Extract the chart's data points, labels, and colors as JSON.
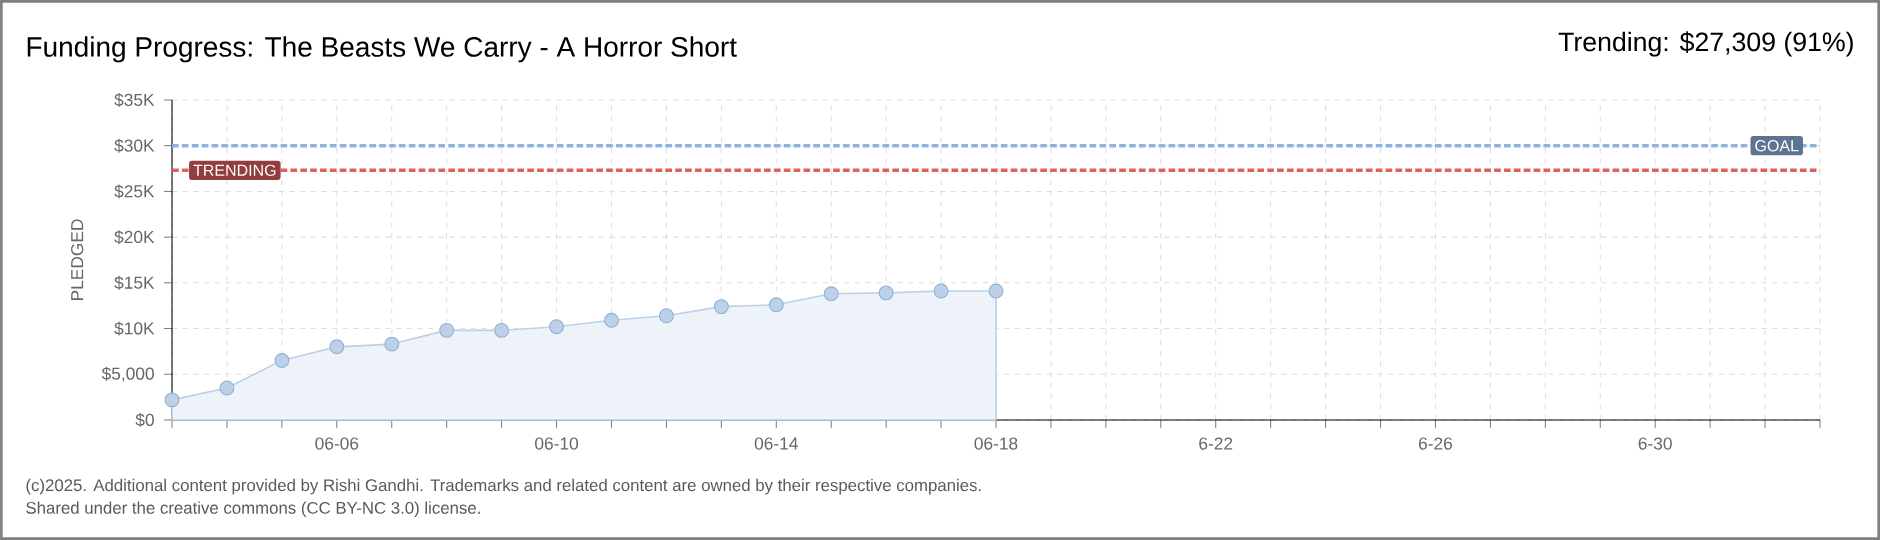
{
  "chart_data": {
    "type": "area",
    "title": "Funding Progress: The Beasts We Carry - A Horror Short",
    "subtitle": "Trending: $27,309 (91%)",
    "ylabel": "PLEDGED",
    "x": [
      "2025-06-03",
      "2025-06-04",
      "2025-06-05",
      "2025-06-06",
      "2025-06-07",
      "2025-06-08",
      "2025-06-09",
      "2025-06-10",
      "2025-06-11",
      "2025-06-12",
      "2025-06-13",
      "2025-06-14",
      "2025-06-15",
      "2025-06-16",
      "2025-06-17",
      "2025-06-18"
    ],
    "series": [
      {
        "color": "#8fb0d8",
        "values": [
          2200,
          3500,
          6500,
          8000,
          8300,
          9800,
          9800,
          10200,
          10900,
          11400,
          12400,
          12600,
          13800,
          13900,
          14100,
          14100
        ]
      }
    ],
    "xlim": [
      "2025-06-03",
      "2025-07-03"
    ],
    "xticks": [
      {
        "value": "2025-06-03",
        "label": null
      },
      {
        "value": "2025-06-04",
        "label": null
      },
      {
        "value": "2025-06-05",
        "label": null
      },
      {
        "value": "2025-06-06",
        "label": "06-06"
      },
      {
        "value": "2025-06-07",
        "label": null
      },
      {
        "value": "2025-06-08",
        "label": null
      },
      {
        "value": "2025-06-09",
        "label": null
      },
      {
        "value": "2025-06-10",
        "label": "06-10"
      },
      {
        "value": "2025-06-11",
        "label": null
      },
      {
        "value": "2025-06-12",
        "label": null
      },
      {
        "value": "2025-06-13",
        "label": null
      },
      {
        "value": "2025-06-14",
        "label": "06-14"
      },
      {
        "value": "2025-06-15",
        "label": null
      },
      {
        "value": "2025-06-16",
        "label": null
      },
      {
        "value": "2025-06-17",
        "label": null
      },
      {
        "value": "2025-06-18",
        "label": "06-18"
      },
      {
        "value": "2025-06-19",
        "label": null
      },
      {
        "value": "2025-06-20",
        "label": null
      },
      {
        "value": "2025-06-21",
        "label": null
      },
      {
        "value": "2025-06-22",
        "label": "6-22"
      },
      {
        "value": "2025-06-23",
        "label": null
      },
      {
        "value": "2025-06-24",
        "label": null
      },
      {
        "value": "2025-06-25",
        "label": null
      },
      {
        "value": "2025-06-26",
        "label": "6-26"
      },
      {
        "value": "2025-06-27",
        "label": null
      },
      {
        "value": "2025-06-28",
        "label": null
      },
      {
        "value": "2025-06-29",
        "label": null
      },
      {
        "value": "2025-06-30",
        "label": "6-30"
      },
      {
        "value": "2025-07-01",
        "label": null
      },
      {
        "value": "2025-07-02",
        "label": null
      },
      {
        "value": "2025-07-03",
        "label": null
      }
    ],
    "ylim": [
      0,
      35000
    ],
    "yticks": [
      {
        "value": 0,
        "label": "$0"
      },
      {
        "value": 5000,
        "label": "$5,000"
      },
      {
        "value": 10000,
        "label": "$10K"
      },
      {
        "value": 15000,
        "label": "$15K"
      },
      {
        "value": 20000,
        "label": "$20K"
      },
      {
        "value": 25000,
        "label": "$25K"
      },
      {
        "value": 30000,
        "label": "$30K"
      },
      {
        "value": 35000,
        "label": "$35K"
      }
    ],
    "ref_lines": [
      {
        "axis": "y",
        "value": 30000,
        "label": "GOAL",
        "color": "#8fb3e0",
        "line_style": "dashed"
      },
      {
        "axis": "y",
        "value": 27309,
        "label": "TRENDING",
        "color": "#e06060",
        "line_style": "dashed"
      }
    ],
    "annotations": [
      "(c)2025. Additional content provided by Rishi Gandhi. Trademarks and related content are owned by their respective companies.",
      "Shared under the creative commons (CC BY-NC 3.0) license."
    ],
    "grid": true,
    "marker": "circle"
  }
}
